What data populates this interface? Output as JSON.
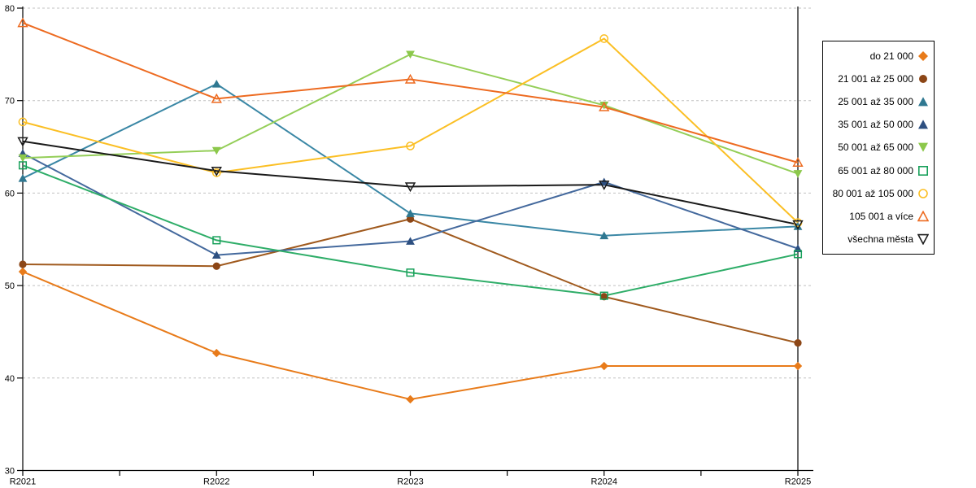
{
  "chart_data": {
    "type": "line",
    "title": "",
    "xlabel": "",
    "ylabel": "",
    "categories": [
      "R2021",
      "R2022",
      "R2023",
      "R2024",
      "R2025"
    ],
    "y_axis": {
      "min": 30,
      "max": 80,
      "tick_step": 10,
      "tick_labels": [
        "80",
        "70",
        "60",
        "50",
        "40",
        "30"
      ]
    },
    "grid": {
      "visible": true,
      "style": "dashed",
      "color": "#C0C0C0"
    },
    "legend_position": "right",
    "axis_color": "#000000",
    "series": [
      {
        "name": "do 21 000",
        "color": "#E87B1A",
        "marker_color": "#E87B1A",
        "marker": "diamond",
        "marker_fill": "filled",
        "values": [
          51.5,
          42.7,
          37.7,
          41.3,
          41.3
        ]
      },
      {
        "name": "21 001 až 25 000",
        "color": "#A05A1E",
        "marker_color": "#8C4616",
        "marker": "circle",
        "marker_fill": "filled",
        "values": [
          52.3,
          52.1,
          57.2,
          48.8,
          43.8
        ]
      },
      {
        "name": "25 001 až 35 000",
        "color": "#3A87A5",
        "marker_color": "#2F7891",
        "marker": "triangle-up",
        "marker_fill": "filled",
        "values": [
          61.6,
          71.8,
          57.8,
          55.4,
          56.4
        ]
      },
      {
        "name": "35 001 až 50 000",
        "color": "#44699D",
        "marker_color": "#2D4F80",
        "marker": "triangle-up",
        "marker_fill": "filled",
        "values": [
          64.3,
          53.3,
          54.8,
          61.2,
          54.0
        ]
      },
      {
        "name": "50 001 až 65 000",
        "color": "#94CE58",
        "marker_color": "#8CC84B",
        "marker": "triangle-down",
        "marker_fill": "filled",
        "values": [
          63.8,
          64.6,
          75.0,
          69.5,
          62.1
        ]
      },
      {
        "name": "65 001 až 80 000",
        "color": "#2EAD68",
        "marker_color": "#17A05A",
        "marker": "square",
        "marker_fill": "open",
        "values": [
          63.0,
          54.9,
          51.4,
          48.9,
          53.4
        ]
      },
      {
        "name": "80 001 až 105 000",
        "color": "#FBBF24",
        "marker_color": "#FBBF24",
        "marker": "circle",
        "marker_fill": "open",
        "values": [
          67.7,
          62.2,
          65.1,
          76.7,
          56.8
        ]
      },
      {
        "name": "105 001 a více",
        "color": "#ED6B21",
        "marker_color": "#ED6B21",
        "marker": "triangle-up",
        "marker_fill": "open",
        "values": [
          78.4,
          70.2,
          72.3,
          69.3,
          63.3
        ]
      },
      {
        "name": "všechna města",
        "color": "#1A1A1A",
        "marker_color": "#1A1A1A",
        "marker": "triangle-down",
        "marker_fill": "open",
        "values": [
          65.6,
          62.4,
          60.7,
          60.9,
          56.6
        ]
      }
    ]
  }
}
